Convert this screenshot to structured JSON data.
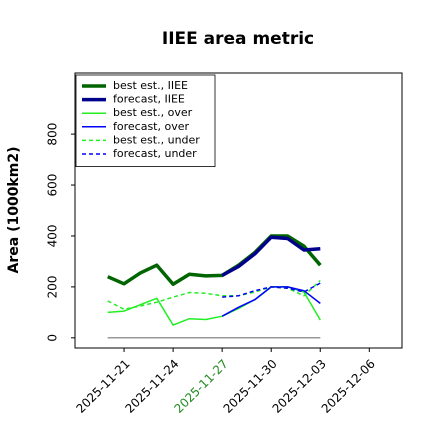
{
  "chart_data": {
    "type": "line",
    "title": "IIEE area metric",
    "y_label": "Area (1000km2)",
    "x": [
      "2025-11-20",
      "2025-11-21",
      "2025-11-22",
      "2025-11-23",
      "2025-11-24",
      "2025-11-25",
      "2025-11-26",
      "2025-11-27",
      "2025-11-28",
      "2025-11-29",
      "2025-11-30",
      "2025-12-01",
      "2025-12-02",
      "2025-12-03"
    ],
    "series": [
      {
        "name": "best est., IIEE",
        "color": "#006400",
        "width": 3.5,
        "dash": "solid",
        "values": [
          240,
          212,
          255,
          285,
          210,
          250,
          243,
          245,
          285,
          335,
          400,
          400,
          360,
          285
        ]
      },
      {
        "name": "forecast, IIEE",
        "color": "#00008b",
        "width": 3.5,
        "dash": "solid",
        "values": [
          null,
          null,
          null,
          null,
          null,
          null,
          null,
          245,
          280,
          330,
          395,
          390,
          345,
          350
        ]
      },
      {
        "name": "best est., over",
        "color": "#22ee22",
        "width": 1.5,
        "dash": "solid",
        "values": [
          100,
          105,
          130,
          155,
          50,
          75,
          72,
          85,
          115,
          150,
          200,
          200,
          180,
          70
        ]
      },
      {
        "name": "forecast, over",
        "color": "#0000ff",
        "width": 1.5,
        "dash": "solid",
        "values": [
          null,
          null,
          null,
          null,
          null,
          null,
          null,
          85,
          120,
          150,
          200,
          200,
          185,
          135
        ]
      },
      {
        "name": "best est., under",
        "color": "#22ee22",
        "width": 1.5,
        "dash": "dashed",
        "values": [
          145,
          112,
          125,
          140,
          160,
          178,
          175,
          165,
          165,
          180,
          200,
          195,
          165,
          225
        ]
      },
      {
        "name": "forecast, under",
        "color": "#0000ff",
        "width": 1.5,
        "dash": "dashed",
        "values": [
          null,
          null,
          null,
          null,
          null,
          null,
          null,
          160,
          165,
          185,
          200,
          195,
          180,
          215
        ]
      },
      {
        "color": "#999999",
        "width": 1.5,
        "dash": "solid",
        "values": [
          0,
          0,
          0,
          0,
          0,
          0,
          0,
          0,
          0,
          0,
          0,
          0,
          0,
          0
        ]
      }
    ],
    "xlim": [
      "2025-11-18",
      "2025-12-08"
    ],
    "xticks": [
      "2025-11-21",
      "2025-11-24",
      "2025-11-27",
      "2025-11-30",
      "2025-12-03",
      "2025-12-06"
    ],
    "xtick_label_colors": [
      "#000000",
      "#000000",
      "#228b22",
      "#000000",
      "#000000",
      "#000000"
    ],
    "ylim": [
      -40,
      1040
    ],
    "yticks": [
      0,
      200,
      400,
      600,
      800
    ],
    "grid": false,
    "legend": "upper left"
  }
}
